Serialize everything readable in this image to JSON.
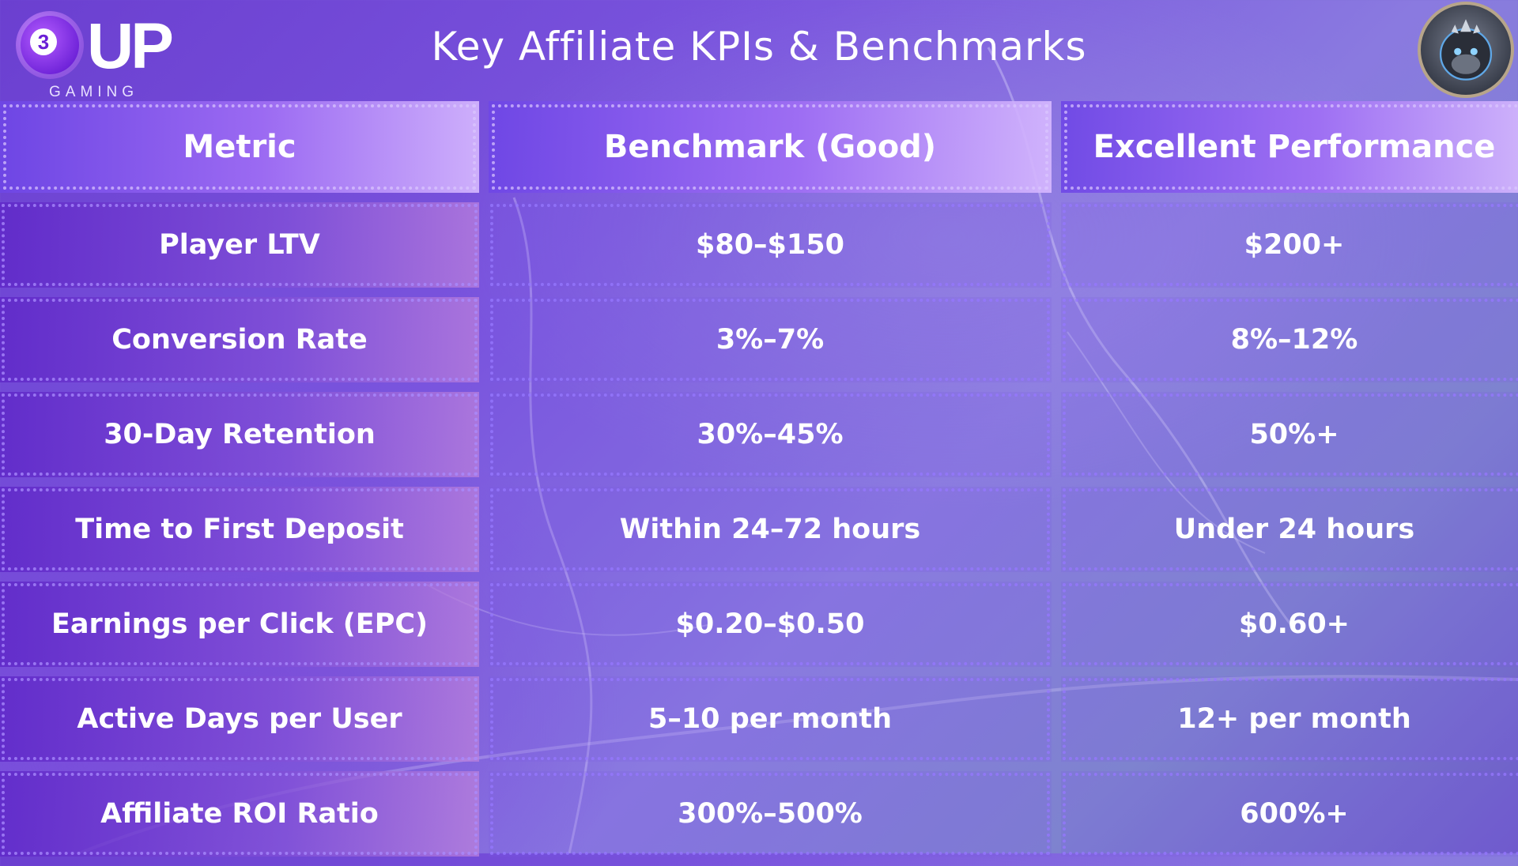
{
  "logo": {
    "chip_number": "3",
    "wordmark": "UP",
    "subtitle": "GAMING"
  },
  "title": "Key Affiliate KPIs & Benchmarks",
  "table": {
    "headers": [
      "Metric",
      "Benchmark (Good)",
      "Excellent Performance"
    ],
    "rows": [
      [
        "Player LTV",
        "$80–$150",
        "$200+"
      ],
      [
        "Conversion Rate",
        "3%–7%",
        "8%–12%"
      ],
      [
        "30-Day Retention",
        "30%–45%",
        "50%+"
      ],
      [
        "Time to First Deposit",
        "Within 24–72 hours",
        "Under 24 hours"
      ],
      [
        "Earnings per Click (EPC)",
        "$0.20–$0.50",
        "$0.60+"
      ],
      [
        "Active Days per User",
        "5–10 per month",
        "12+ per month"
      ],
      [
        "Affiliate ROI Ratio",
        "300%–500%",
        "600%+"
      ]
    ]
  },
  "icons": {
    "avatar": "gorilla-mascot-icon"
  },
  "colors": {
    "primary": "#6b3fd0",
    "accent": "#a06ef5",
    "text": "#ffffff"
  }
}
